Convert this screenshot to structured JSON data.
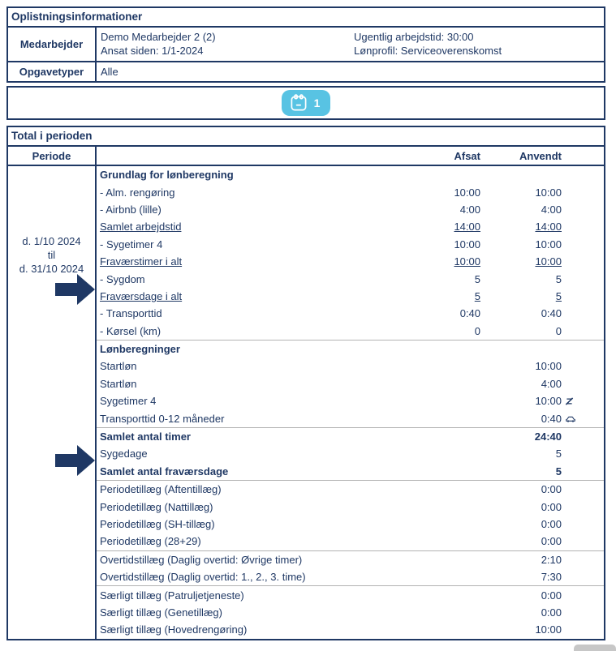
{
  "colors": {
    "navy": "#1f3864",
    "button_blue": "#58c3e3",
    "divider_grey": "#b3b3b3",
    "scrollbar_grey": "#c7c7c7"
  },
  "info_table": {
    "title": "Oplistningsinformationer",
    "employee": {
      "label": "Medarbejder",
      "name": "Demo Medarbejder 2 (2)",
      "hired_since": "Ansat siden: 1/1-2024",
      "weekly_hours": "Ugentlig arbejdstid: 30:00",
      "pay_profile": "Lønprofil: Serviceoverenskomst"
    },
    "task_types": {
      "label": "Opgavetyper",
      "value": "Alle"
    }
  },
  "toolbar": {
    "calendar_count": "1",
    "calendar_icon": "calendar-icon"
  },
  "period_table": {
    "title": "Total i perioden",
    "columns": {
      "period": "Periode",
      "afsat": "Afsat",
      "anvendt": "Anvendt"
    },
    "period": {
      "from": "d. 1/10 2024",
      "mid": "til",
      "to": "d. 31/10 2024"
    },
    "groups": [
      {
        "rows": [
          {
            "label": "Grundlag for lønberegning",
            "bold": true
          },
          {
            "label": "- Alm. rengøring",
            "afsat": "10:00",
            "anvendt": "10:00"
          },
          {
            "label": "- Airbnb (lille)",
            "afsat": "4:00",
            "anvendt": "4:00"
          },
          {
            "label": "Samlet arbejdstid",
            "afsat": "14:00",
            "anvendt": "14:00",
            "underline": true
          },
          {
            "label": "- Sygetimer 4",
            "afsat": "10:00",
            "anvendt": "10:00"
          },
          {
            "label": "Fraværstimer i alt",
            "afsat": "10:00",
            "anvendt": "10:00",
            "underline": true
          },
          {
            "label": "- Sygdom",
            "afsat": "5",
            "anvendt": "5"
          },
          {
            "label": "Fraværsdage i alt",
            "afsat": "5",
            "anvendt": "5",
            "underline": true
          },
          {
            "label": "- Transporttid",
            "afsat": "0:40",
            "anvendt": "0:40"
          },
          {
            "label": "- Kørsel (km)",
            "afsat": "0",
            "anvendt": "0"
          }
        ]
      },
      {
        "rows": [
          {
            "label": "Lønberegninger",
            "bold": true
          },
          {
            "label": "Startløn",
            "anvendt": "10:00"
          },
          {
            "label": "Startløn",
            "anvendt": "4:00"
          },
          {
            "label": "Sygetimer 4",
            "anvendt": "10:00",
            "icon": "sick-leave-icon"
          },
          {
            "label": "Transporttid 0-12 måneder",
            "anvendt": "0:40",
            "icon": "car-icon"
          }
        ]
      },
      {
        "rows": [
          {
            "label": "Samlet antal timer",
            "anvendt": "24:40",
            "bold": true
          },
          {
            "label": "Sygedage",
            "anvendt": "5"
          },
          {
            "label": "Samlet antal fraværsdage",
            "anvendt": "5",
            "bold": true
          }
        ]
      },
      {
        "rows": [
          {
            "label": "Periodetillæg (Aftentillæg)",
            "anvendt": "0:00"
          },
          {
            "label": "Periodetillæg (Nattillæg)",
            "anvendt": "0:00"
          },
          {
            "label": "Periodetillæg (SH-tillæg)",
            "anvendt": "0:00"
          },
          {
            "label": "Periodetillæg (28+29)",
            "anvendt": "0:00"
          }
        ]
      },
      {
        "rows": [
          {
            "label": "Overtidstillæg (Daglig overtid: Øvrige timer)",
            "anvendt": "2:10"
          },
          {
            "label": "Overtidstillæg (Daglig overtid: 1., 2., 3. time)",
            "anvendt": "7:30"
          }
        ]
      },
      {
        "rows": [
          {
            "label": "Særligt tillæg (Patruljetjeneste)",
            "anvendt": "0:00"
          },
          {
            "label": "Særligt tillæg (Genetillæg)",
            "anvendt": "0:00"
          },
          {
            "label": "Særligt tillæg (Hovedrengøring)",
            "anvendt": "10:00"
          }
        ]
      }
    ]
  }
}
